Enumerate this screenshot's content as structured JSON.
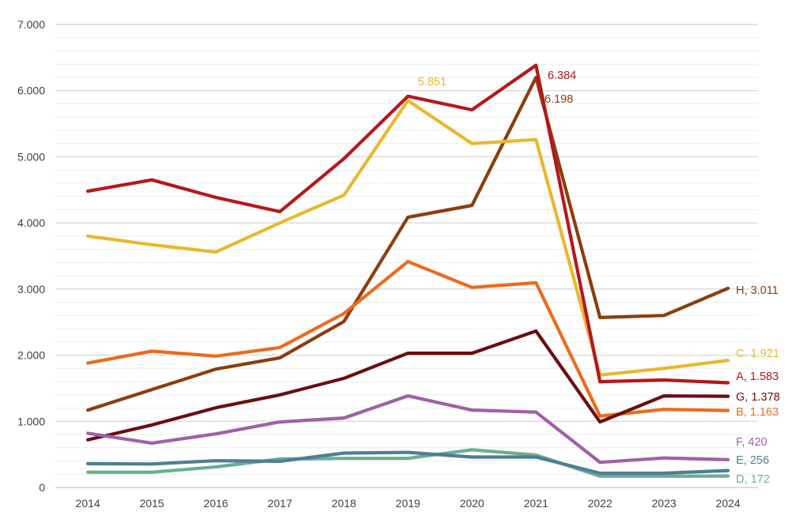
{
  "chart_data": {
    "type": "line",
    "title": "",
    "xlabel": "",
    "ylabel": "",
    "x": [
      "2014",
      "2015",
      "2016",
      "2017",
      "2018",
      "2019",
      "2020",
      "2021",
      "2022",
      "2023",
      "2024"
    ],
    "ylim": [
      0,
      7000
    ],
    "y_major_ticks": [
      0,
      1000,
      2000,
      3000,
      4000,
      5000,
      6000,
      7000
    ],
    "y_tick_labels": [
      "0",
      "1.000",
      "2.000",
      "3.000",
      "4.000",
      "5.000",
      "6.000",
      "7.000"
    ],
    "y_minor_step": 200,
    "grid": true,
    "legend": "none (series labeled at right end of lines)",
    "series": [
      {
        "name": "H",
        "color": "#8B3E0F",
        "values": [
          1170,
          1480,
          1790,
          1960,
          2510,
          4085,
          4265,
          6198,
          2570,
          2600,
          3011
        ],
        "end_label": "H, 3.011"
      },
      {
        "name": "C",
        "color": "#E8B82E",
        "values": [
          3800,
          3670,
          3560,
          4000,
          4420,
          5851,
          5200,
          5260,
          1700,
          1800,
          1921
        ],
        "end_label": "C. 1.921"
      },
      {
        "name": "A",
        "color": "#B5181B",
        "values": [
          4480,
          4650,
          4385,
          4170,
          4970,
          5915,
          5710,
          6384,
          1600,
          1625,
          1583
        ],
        "end_label": "A, 1.583"
      },
      {
        "name": "G",
        "color": "#6B0E0E",
        "values": [
          720,
          945,
          1205,
          1400,
          1650,
          2030,
          2030,
          2365,
          990,
          1385,
          1378
        ],
        "end_label": "G, 1.378"
      },
      {
        "name": "B",
        "color": "#EA6C1E",
        "values": [
          1880,
          2060,
          1985,
          2115,
          2630,
          3415,
          3025,
          3095,
          1080,
          1180,
          1163
        ],
        "end_label": "B, 1.163"
      },
      {
        "name": "F",
        "color": "#A060A8",
        "values": [
          820,
          670,
          810,
          990,
          1050,
          1385,
          1170,
          1140,
          380,
          445,
          420
        ],
        "end_label": "F, 420"
      },
      {
        "name": "E",
        "color": "#4F7D95",
        "values": [
          360,
          355,
          405,
          395,
          520,
          530,
          460,
          460,
          215,
          215,
          256
        ],
        "end_label": "E, 256"
      },
      {
        "name": "D",
        "color": "#6BAE90",
        "values": [
          230,
          230,
          310,
          430,
          440,
          440,
          570,
          490,
          170,
          170,
          172
        ],
        "end_label": "D, 172"
      }
    ],
    "annotations": [
      {
        "text": "6.384",
        "series": "A",
        "x": "2021",
        "value": 6384,
        "color": "#B5181B"
      },
      {
        "text": "6.198",
        "series": "H",
        "x": "2021",
        "value": 6198,
        "color": "#8B3E0F"
      },
      {
        "text": "5.851",
        "series": "C",
        "x": "2019",
        "value": 5851,
        "color": "#E8B82E"
      }
    ],
    "end_label_colors": {
      "H": "#8B3E0F",
      "C": "#E8B82E",
      "A": "#B5181B",
      "G": "#6B0E0E",
      "B": "#EA6C1E",
      "F": "#A060A8",
      "E": "#4F7D95",
      "D": "#6BAE90"
    }
  }
}
